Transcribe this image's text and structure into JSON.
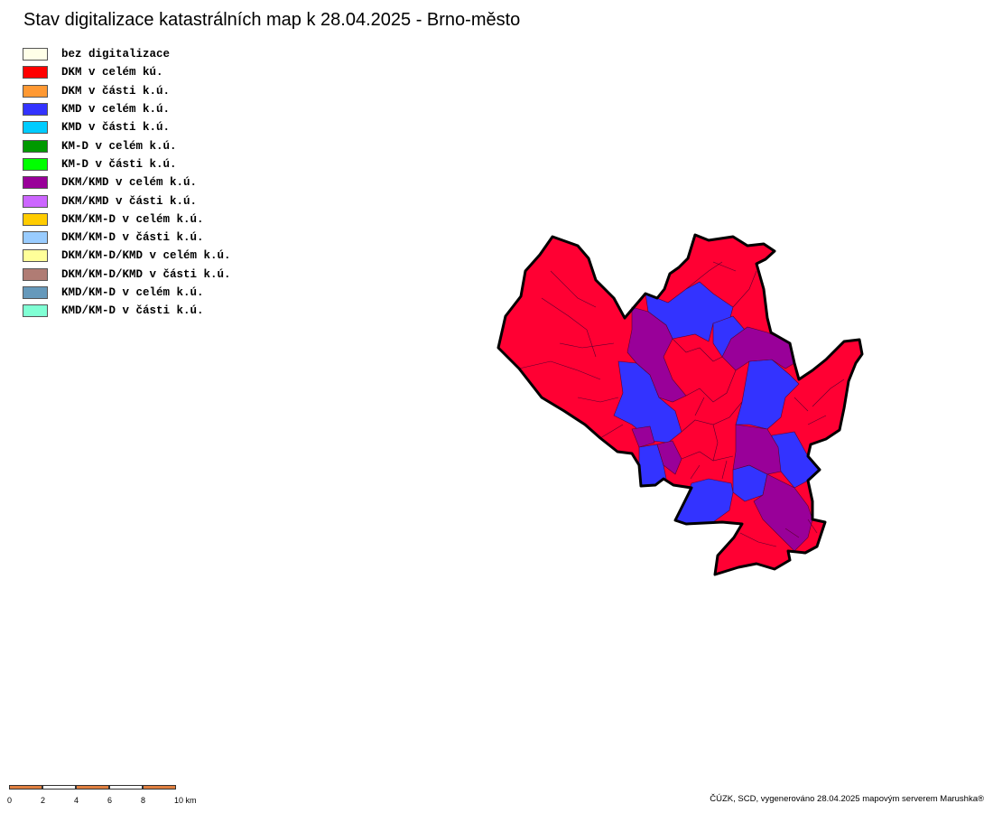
{
  "title": "Stav digitalizace katastrálních map k 28.04.2025 - Brno-město",
  "legend": [
    {
      "label": "bez digitalizace",
      "color": "#ffffe8"
    },
    {
      "label": "DKM v celém kú.",
      "color": "#ff0000"
    },
    {
      "label": "DKM v části k.ú.",
      "color": "#ff9933"
    },
    {
      "label": "KMD v celém k.ú.",
      "color": "#3333ff"
    },
    {
      "label": "KMD v části k.ú.",
      "color": "#00ccff"
    },
    {
      "label": "KM-D v celém k.ú.",
      "color": "#009900"
    },
    {
      "label": "KM-D v části k.ú.",
      "color": "#00ff00"
    },
    {
      "label": "DKM/KMD v celém k.ú.",
      "color": "#990099"
    },
    {
      "label": "DKM/KMD v části k.ú.",
      "color": "#cc66ff"
    },
    {
      "label": "DKM/KM-D v celém k.ú.",
      "color": "#ffcc00"
    },
    {
      "label": "DKM/KM-D v části k.ú.",
      "color": "#99ccff"
    },
    {
      "label": "DKM/KM-D/KMD v celém k.ú.",
      "color": "#ffff99"
    },
    {
      "label": "DKM/KM-D/KMD v části k.ú.",
      "color": "#b07c74"
    },
    {
      "label": "KMD/KM-D v celém k.ú.",
      "color": "#6699bb"
    },
    {
      "label": "KMD/KM-D v části k.ú.",
      "color": "#80ffd4"
    }
  ],
  "map": {
    "fills": {
      "dkm": "#ff0033",
      "kmd": "#3333ff",
      "dkm_kmd": "#990099",
      "outline": "#000000",
      "inner_border": "#5a0030"
    }
  },
  "scale_bar": {
    "ticks": [
      "0",
      "2",
      "4",
      "6",
      "8",
      "10 km"
    ],
    "colors": [
      "#e07f3f",
      "#ffffff"
    ]
  },
  "credit": "ČÚZK, SCD, vygenerováno 28.04.2025 mapovým serverem Marushka®"
}
